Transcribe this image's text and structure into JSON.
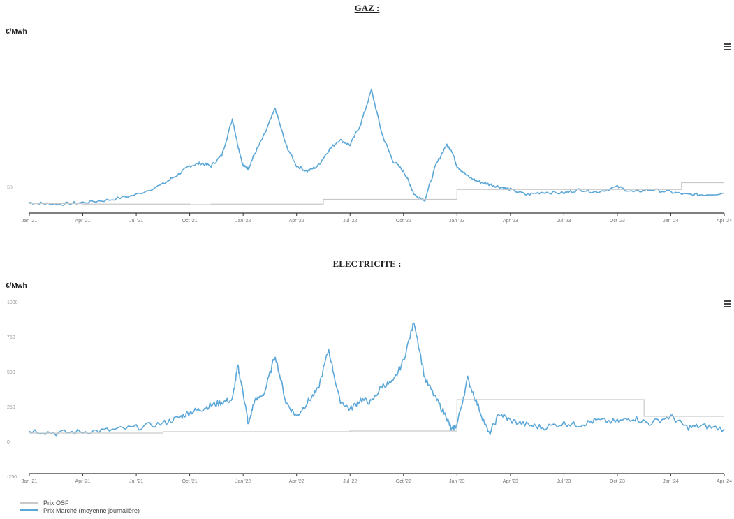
{
  "colors": {
    "market": "#5ba7d8",
    "osf": "#c9c9c9",
    "axis": "#333333",
    "market_alt": "#e48fb7"
  },
  "legend": [
    {
      "label": "Prix OSF",
      "color": "#c9c9c9"
    },
    {
      "label": "Prix Marché (moyenne journalière)",
      "color": "#5ba7d8"
    }
  ],
  "chart_data": [
    {
      "type": "line",
      "title": "GAZ :",
      "ylabel": "€/Mwh",
      "x_ticks": [
        "Jan '21",
        "Apr '21",
        "Jul '21",
        "Oct '21",
        "Jan '22",
        "Apr '22",
        "Jul '22",
        "Oct '22",
        "Jan '23",
        "Apr '23",
        "Jul '23",
        "Oct '23",
        "Jan '24",
        "Apr '24"
      ],
      "y_ticks": [
        {
          "value": 50,
          "label": "50"
        }
      ],
      "ylim": [
        0,
        300
      ],
      "series": [
        {
          "name": "Prix Marché (moyenne journalière)",
          "role": "market",
          "x": [
            0,
            0.3,
            0.6,
            1.0,
            1.5,
            2.0,
            2.5,
            2.8,
            3.0,
            3.2,
            3.4,
            3.6,
            3.8,
            3.9,
            4.0,
            4.1,
            4.2,
            4.4,
            4.6,
            4.8,
            5.0,
            5.2,
            5.4,
            5.6,
            5.8,
            6.0,
            6.2,
            6.4,
            6.6,
            6.8,
            7.0,
            7.1,
            7.2,
            7.4,
            7.6,
            7.8,
            7.9,
            8.0,
            8.2,
            8.4,
            8.6,
            8.8,
            9.0,
            9.3,
            9.6,
            10.0,
            10.3,
            10.6,
            11.0,
            11.3,
            11.6,
            12.0,
            12.3,
            12.6,
            13.0
          ],
          "values": [
            20,
            18,
            17,
            20,
            25,
            35,
            55,
            75,
            90,
            95,
            90,
            110,
            180,
            130,
            90,
            85,
            110,
            150,
            200,
            130,
            90,
            80,
            90,
            120,
            140,
            130,
            170,
            235,
            150,
            100,
            80,
            60,
            35,
            25,
            90,
            130,
            120,
            90,
            70,
            60,
            55,
            50,
            45,
            35,
            40,
            38,
            45,
            40,
            50,
            40,
            45,
            40,
            35,
            35,
            38
          ]
        },
        {
          "name": "Prix OSF",
          "role": "osf",
          "x": [
            0,
            1.0,
            3.0,
            3.4,
            5.5,
            7.6,
            8.0,
            11.5,
            12.2,
            13.0
          ],
          "values": [
            18,
            17,
            16,
            17,
            26,
            26,
            45,
            45,
            58,
            58
          ]
        }
      ]
    },
    {
      "type": "line",
      "title": "ELECTRICITE :",
      "ylabel": "€/Mwh",
      "x_ticks": [
        "Jan '21",
        "Apr '21",
        "Jul '21",
        "Oct '21",
        "Jan '22",
        "Apr '22",
        "Jul '22",
        "Oct '22",
        "Jan '23",
        "Apr '23",
        "Jul '23",
        "Oct '23",
        "Jan '24",
        "Apr '24"
      ],
      "y_ticks": [
        {
          "value": 1000,
          "label": "1000"
        },
        {
          "value": 750,
          "label": "750"
        },
        {
          "value": 500,
          "label": "500"
        },
        {
          "value": 250,
          "label": "250"
        },
        {
          "value": 0,
          "label": "0"
        },
        {
          "value": -250,
          "label": "-250"
        }
      ],
      "ylim": [
        -250,
        1000
      ],
      "series": [
        {
          "name": "Prix Marché (moyenne journalière)",
          "role": "market",
          "x": [
            0,
            0.5,
            1.0,
            1.5,
            2.0,
            2.5,
            2.8,
            3.0,
            3.2,
            3.4,
            3.6,
            3.8,
            3.9,
            4.0,
            4.1,
            4.2,
            4.4,
            4.6,
            4.8,
            5.0,
            5.2,
            5.4,
            5.6,
            5.8,
            6.0,
            6.2,
            6.4,
            6.6,
            6.8,
            7.0,
            7.2,
            7.4,
            7.6,
            7.8,
            7.9,
            8.0,
            8.2,
            8.4,
            8.6,
            8.8,
            9.0,
            9.3,
            9.6,
            10.0,
            10.3,
            10.6,
            11.0,
            11.3,
            11.6,
            12.0,
            12.3,
            12.6,
            13.0
          ],
          "values": [
            80,
            60,
            70,
            80,
            100,
            130,
            170,
            210,
            230,
            260,
            280,
            300,
            540,
            350,
            120,
            280,
            350,
            620,
            280,
            180,
            280,
            370,
            660,
            300,
            230,
            300,
            280,
            400,
            420,
            580,
            860,
            450,
            310,
            180,
            80,
            120,
            450,
            250,
            50,
            200,
            150,
            120,
            100,
            130,
            120,
            150,
            140,
            170,
            130,
            180,
            100,
            110,
            90
          ]
        },
        {
          "name": "Prix OSF",
          "role": "osf",
          "x": [
            0,
            1.0,
            2.5,
            4.0,
            6.0,
            7.5,
            8.0,
            8.5,
            11.3,
            11.5,
            13.0
          ],
          "values": [
            60,
            60,
            70,
            70,
            75,
            75,
            300,
            300,
            300,
            180,
            180
          ]
        }
      ]
    }
  ]
}
